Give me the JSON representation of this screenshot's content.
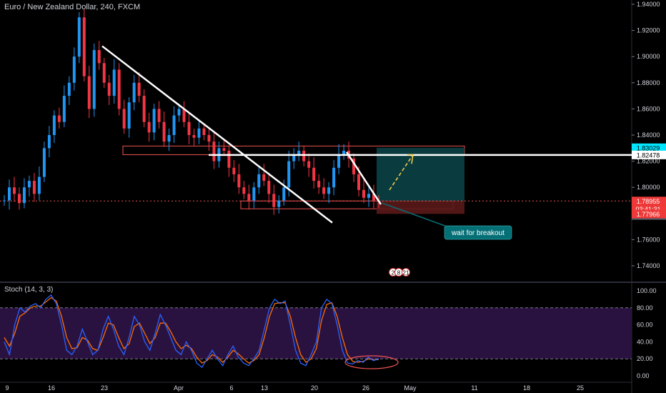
{
  "header": {
    "title": "Euro / New Zealand Dollar, 240, FXCM"
  },
  "oscillator": {
    "title": "Stoch (14, 3, 3)"
  },
  "callout": {
    "text": "wait for breakout"
  },
  "colors": {
    "bull": "#26a69a",
    "bear": "#ef5350",
    "bull_body": "#2196f3",
    "bear_body": "#f23645",
    "trendline": "#ffffff",
    "zone_fill": "#0b3f42",
    "stoch_band": "#2a1240",
    "stoch_k": "#2962ff",
    "stoch_d": "#ff6d00",
    "callout_bg": "#056f76",
    "arrow": "#f7d14a"
  },
  "price_axis": {
    "ticks": [
      "1.94000",
      "1.92000",
      "1.90000",
      "1.88000",
      "1.86000",
      "1.84000",
      "1.82000",
      "1.80000",
      "1.78000",
      "1.76000",
      "1.74000"
    ]
  },
  "price_labels": [
    {
      "text": "1.83029",
      "kind": "cyan"
    },
    {
      "text": "1.82478",
      "kind": "white"
    },
    {
      "text": "1.78955",
      "kind": "red"
    },
    {
      "text": "03:41:31",
      "kind": "red"
    },
    {
      "text": "1.78941",
      "kind": "gray"
    },
    {
      "text": "1.77966",
      "kind": "red"
    }
  ],
  "time_axis": {
    "ticks": [
      "9",
      "16",
      "23",
      "Apr",
      "6",
      "13",
      "20",
      "26",
      "May",
      "11",
      "18",
      "25"
    ]
  },
  "stoch_axis": {
    "ticks": [
      "100.00",
      "80.00",
      "60.00",
      "40.00",
      "20.00",
      "0.00"
    ]
  },
  "marker_badges": [
    "2",
    "8",
    "21"
  ],
  "chart_data": {
    "type": "candlestick",
    "title": "Euro / New Zealand Dollar, 240, FXCM",
    "ylim": [
      1.72,
      1.94
    ],
    "key_levels": {
      "resistance": 1.82478,
      "target": 1.83029,
      "entry": 1.78955,
      "last": 1.78941,
      "stop": 1.77966
    },
    "close_path": [
      1.79,
      1.8,
      1.795,
      1.788,
      1.8,
      1.805,
      1.795,
      1.808,
      1.83,
      1.84,
      1.855,
      1.85,
      1.87,
      1.88,
      1.9,
      1.93,
      1.885,
      1.86,
      1.905,
      1.895,
      1.88,
      1.87,
      1.89,
      1.86,
      1.845,
      1.865,
      1.88,
      1.87,
      1.85,
      1.842,
      1.86,
      1.85,
      1.835,
      1.84,
      1.855,
      1.86,
      1.85,
      1.84,
      1.838,
      1.845,
      1.84,
      1.835,
      1.82,
      1.83,
      1.828,
      1.815,
      1.81,
      1.8,
      1.795,
      1.79,
      1.8,
      1.81,
      1.805,
      1.795,
      1.785,
      1.79,
      1.8,
      1.82,
      1.825,
      1.828,
      1.82,
      1.815,
      1.805,
      1.8,
      1.795,
      1.8,
      1.815,
      1.825,
      1.828,
      1.822,
      1.81,
      1.798,
      1.792,
      1.795,
      1.79,
      1.789
    ],
    "stoch_k_path": [
      40,
      25,
      60,
      80,
      75,
      82,
      85,
      80,
      90,
      95,
      85,
      60,
      30,
      25,
      35,
      55,
      40,
      25,
      30,
      55,
      70,
      55,
      35,
      25,
      45,
      70,
      60,
      40,
      30,
      50,
      72,
      60,
      45,
      30,
      25,
      40,
      30,
      15,
      10,
      20,
      30,
      20,
      12,
      25,
      35,
      22,
      15,
      12,
      20,
      30,
      55,
      80,
      90,
      85,
      88,
      60,
      30,
      15,
      12,
      25,
      40,
      80,
      90,
      85,
      60,
      30,
      15,
      14,
      18,
      16,
      22,
      18,
      20
    ],
    "stoch_d_path": [
      45,
      35,
      50,
      70,
      74,
      80,
      82,
      82,
      87,
      92,
      88,
      70,
      45,
      32,
      33,
      45,
      42,
      32,
      30,
      45,
      62,
      60,
      45,
      32,
      38,
      58,
      62,
      50,
      38,
      45,
      62,
      62,
      52,
      40,
      32,
      36,
      32,
      22,
      15,
      18,
      25,
      22,
      16,
      22,
      30,
      26,
      20,
      15,
      18,
      25,
      45,
      70,
      85,
      86,
      86,
      70,
      45,
      25,
      16,
      20,
      32,
      65,
      84,
      86,
      70,
      45,
      25,
      17,
      16,
      17,
      20,
      19,
      19
    ]
  }
}
